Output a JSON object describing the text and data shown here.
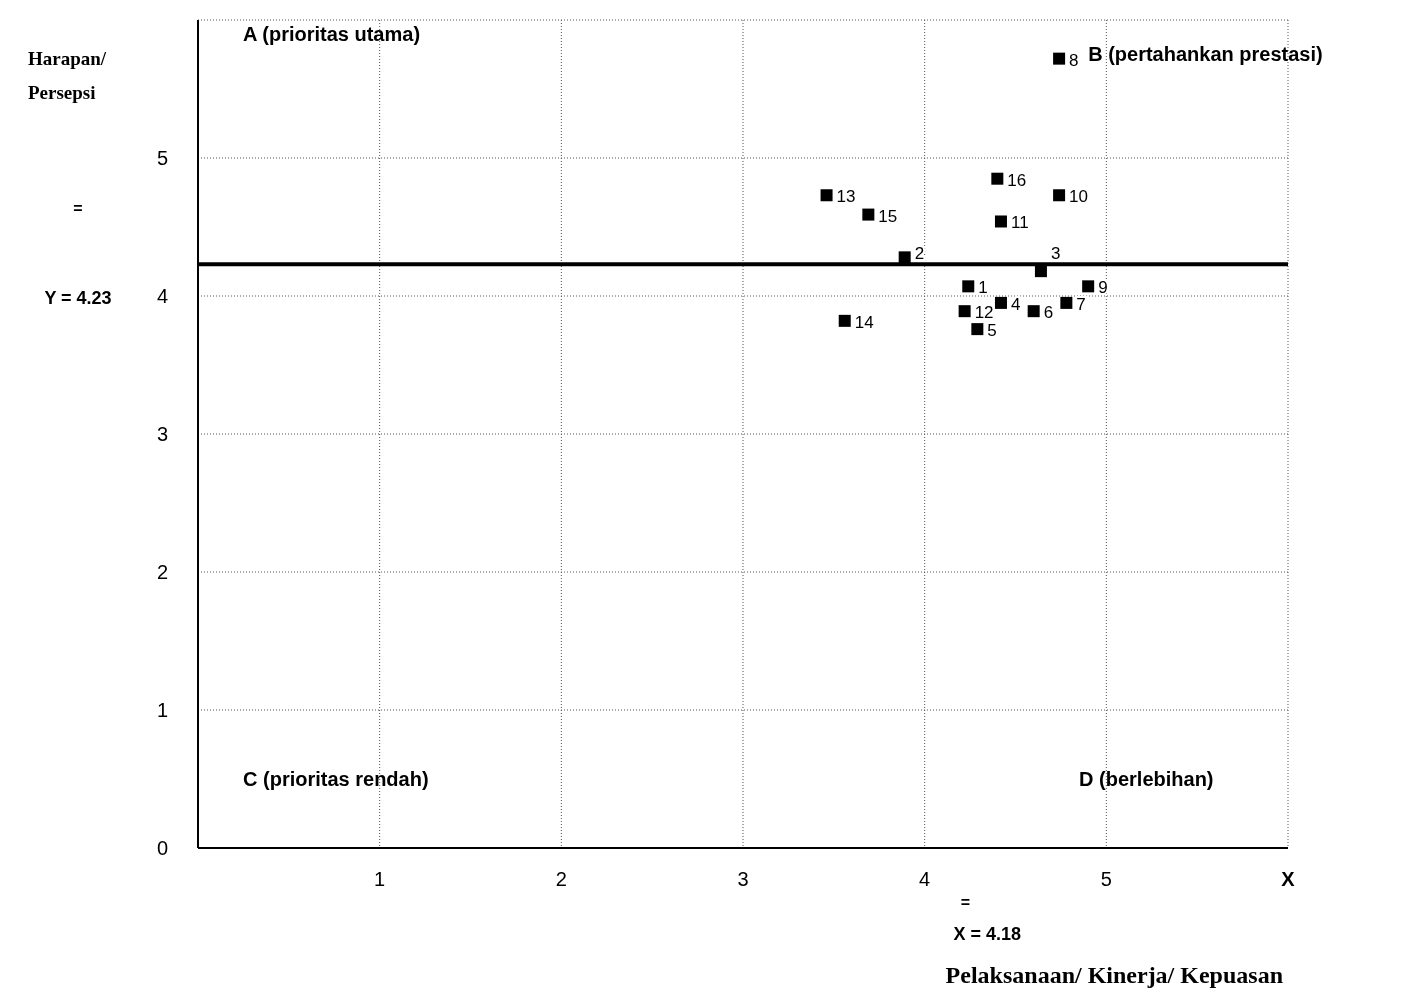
{
  "chart_data": {
    "type": "scatter",
    "xlabel": "Pelaksanaan/ Kinerja/ Kepuasan",
    "ylabel": "Harapan/ Persepsi",
    "x": [
      4.24,
      3.89,
      4.64,
      4.42,
      4.29,
      4.6,
      4.78,
      4.74,
      4.9,
      4.74,
      4.42,
      4.22,
      3.46,
      3.56,
      3.69,
      4.4
    ],
    "series": [
      {
        "color": "#000000",
        "values": [
          4.07,
          4.28,
          4.18,
          3.95,
          3.76,
          3.89,
          3.95,
          5.72,
          4.07,
          4.73,
          4.54,
          3.89,
          4.73,
          3.82,
          4.59,
          4.85
        ]
      }
    ],
    "marker": "square",
    "grid": true,
    "legend": false,
    "xlim": [
      0,
      6
    ],
    "xticks": [
      {
        "value": 0,
        "label": null
      },
      1,
      2,
      3,
      4,
      5,
      {
        "value": 6,
        "label": "X"
      }
    ],
    "ylim": [
      0,
      6
    ],
    "yticks": [
      0,
      1,
      2,
      3,
      4,
      5,
      {
        "value": 6,
        "label": null
      }
    ],
    "ref_lines": [
      {
        "axis": "y",
        "value": 4.23,
        "label": "Y = 4.23",
        "color": "#000000"
      }
    ],
    "annotations": [
      "A (prioritas utama)",
      "B (pertahankan prestasi)",
      "C (prioritas rendah)",
      "D (berlebihan)",
      "=",
      "X = 4.18",
      "=",
      {
        "text": "1",
        "x": 4.24,
        "y": 4.07
      },
      {
        "text": "2",
        "x": 3.89,
        "y": 4.28
      },
      {
        "text": "3",
        "x": 4.64,
        "y": 4.18
      },
      {
        "text": "4",
        "x": 4.42,
        "y": 3.95
      },
      {
        "text": "5",
        "x": 4.29,
        "y": 3.76
      },
      {
        "text": "6",
        "x": 4.6,
        "y": 3.89
      },
      {
        "text": "7",
        "x": 4.78,
        "y": 3.95
      },
      {
        "text": "8",
        "x": 4.74,
        "y": 5.72
      },
      {
        "text": "9",
        "x": 4.9,
        "y": 4.07
      },
      {
        "text": "10",
        "x": 4.74,
        "y": 4.73
      },
      {
        "text": "11",
        "x": 4.42,
        "y": 4.54
      },
      {
        "text": "12",
        "x": 4.22,
        "y": 3.89
      },
      {
        "text": "13",
        "x": 3.46,
        "y": 4.73
      },
      {
        "text": "14",
        "x": 3.56,
        "y": 3.82
      },
      {
        "text": "15",
        "x": 3.69,
        "y": 4.59
      },
      {
        "text": "16",
        "x": 4.4,
        "y": 4.85
      }
    ]
  }
}
